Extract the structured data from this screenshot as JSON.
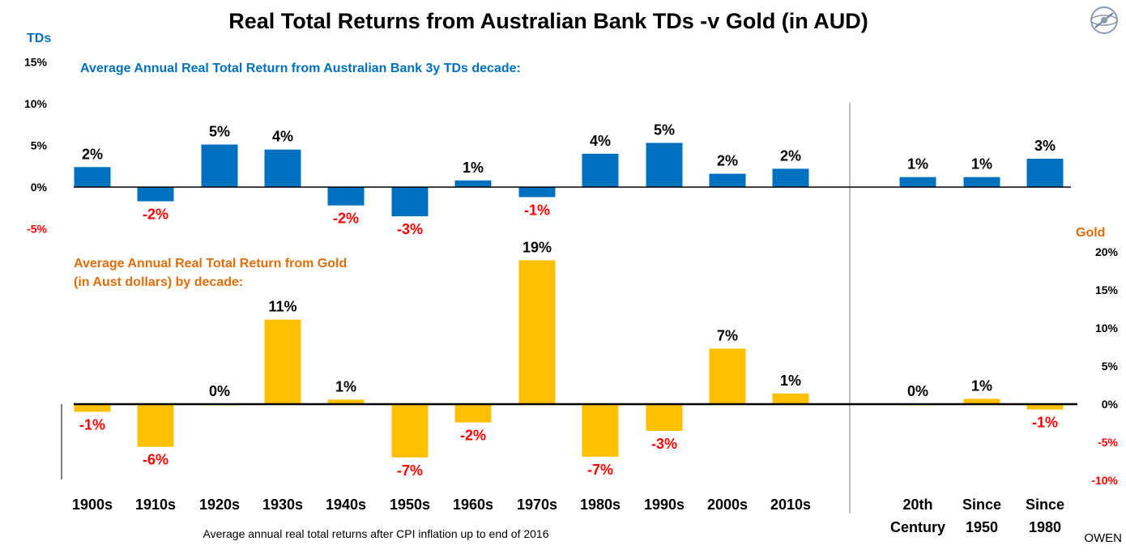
{
  "chart_data": {
    "type": "bar",
    "title": "Real Total Returns from Australian Bank TDs -v Gold (in AUD)",
    "footnote": "Average annual real total returns after CPI inflation up to end of 2016",
    "credit": "OWEN",
    "colors": {
      "td": "#0070c0",
      "gold": "#ffc000",
      "negative_label": "#ff0000",
      "gold_axis_title": "#e36c09"
    },
    "categories": [
      "1900s",
      "1910s",
      "1920s",
      "1930s",
      "1940s",
      "1950s",
      "1960s",
      "1970s",
      "1980s",
      "1990s",
      "2000s",
      "2010s",
      "20th Century",
      "Since 1950",
      "Since 1980"
    ],
    "category_labels": [
      [
        "1900s"
      ],
      [
        "1910s"
      ],
      [
        "1920s"
      ],
      [
        "1930s"
      ],
      [
        "1940s"
      ],
      [
        "1950s"
      ],
      [
        "1960s"
      ],
      [
        "1970s"
      ],
      [
        "1980s"
      ],
      [
        "1990s"
      ],
      [
        "2000s"
      ],
      [
        "2010s"
      ],
      [
        "20th",
        "Century"
      ],
      [
        "Since",
        "1950"
      ],
      [
        "Since",
        "1980"
      ]
    ],
    "series": [
      {
        "name": "Average Annual Real Total Return from Australian Bank 3y TDs decade:",
        "axis_title": "TDs",
        "ylim": [
          -5,
          15
        ],
        "ticks": [
          "-5%",
          "0%",
          "5%",
          "10%",
          "15%"
        ],
        "values": [
          2.4,
          -1.7,
          5.1,
          4.5,
          -2.2,
          -3.5,
          0.8,
          -1.2,
          4.0,
          5.3,
          1.6,
          2.2,
          1.2,
          1.2,
          3.4
        ],
        "labels": [
          "2%",
          "-2%",
          "5%",
          "4%",
          "-2%",
          "-3%",
          "1%",
          "-1%",
          "4%",
          "5%",
          "2%",
          "2%",
          "1%",
          "1%",
          "3%"
        ]
      },
      {
        "name": "Average Annual Real Total Return from Gold (in Aust dollars) by decade:",
        "name_lines": [
          "Average Annual Real Total Return from Gold",
          "(in Aust dollars) by decade:"
        ],
        "axis_title": "Gold",
        "ylim": [
          -10,
          20
        ],
        "ticks": [
          "-10%",
          "-5%",
          "0%",
          "5%",
          "10%",
          "15%",
          "20%"
        ],
        "values": [
          -1.0,
          -5.6,
          0.0,
          11.1,
          0.6,
          -7.0,
          -2.4,
          18.9,
          -6.9,
          -3.5,
          7.3,
          1.4,
          0.0,
          0.7,
          -0.7
        ],
        "labels": [
          "-1%",
          "-6%",
          "0%",
          "11%",
          "1%",
          "-7%",
          "-2%",
          "19%",
          "-7%",
          "-3%",
          "7%",
          "1%",
          "0%",
          "1%",
          "-1%"
        ]
      }
    ]
  }
}
